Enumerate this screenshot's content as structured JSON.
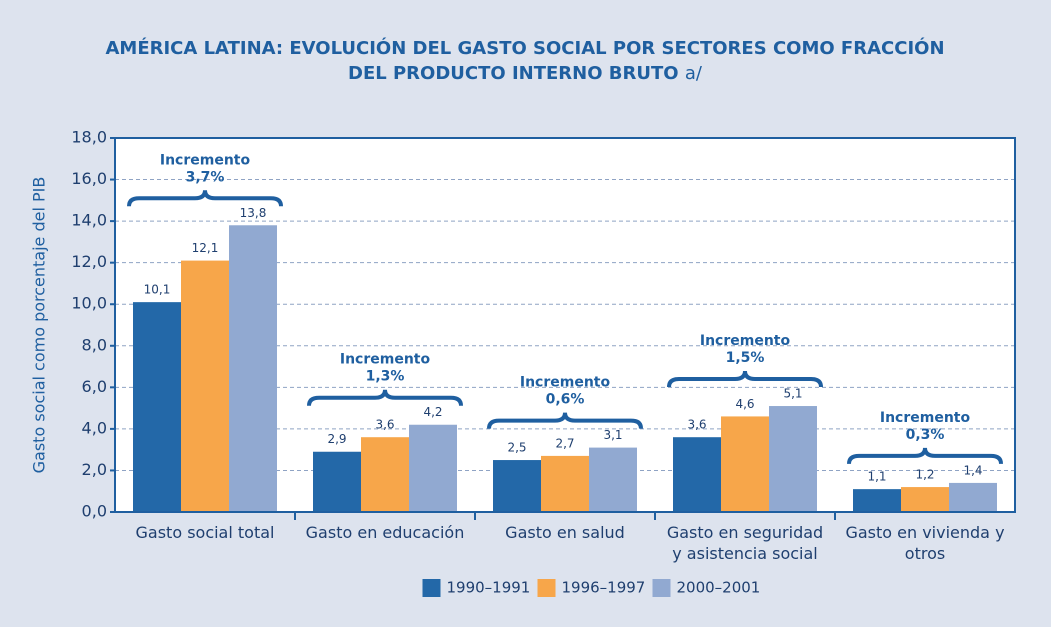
{
  "chart_data": {
    "type": "bar",
    "title": "AMÉRICA LATINA: EVOLUCIÓN DEL GASTO SOCIAL POR SECTORES COMO FRACCIÓN DEL PRODUCTO INTERNO BRUTO",
    "title_note": "a/",
    "y_label": "Gasto social como porcentaje del PIB",
    "categories": [
      "Gasto social total",
      "Gasto en educación",
      "Gasto en salud",
      "Gasto en seguridad y asistencia social",
      "Gasto en vivienda y otros"
    ],
    "series": [
      {
        "name": "1990–1991",
        "color": "#2368a8",
        "values": [
          10.1,
          2.9,
          2.5,
          3.6,
          1.1
        ],
        "value_labels": [
          "10,1",
          "2,9",
          "2,5",
          "3,6",
          "1,1"
        ]
      },
      {
        "name": "1996–1997",
        "color": "#f7a64a",
        "values": [
          12.1,
          3.6,
          2.7,
          4.6,
          1.2
        ],
        "value_labels": [
          "12,1",
          "3,6",
          "2,7",
          "4,6",
          "1,2"
        ]
      },
      {
        "name": "2000–2001",
        "color": "#91a9d1",
        "values": [
          13.8,
          4.2,
          3.1,
          5.1,
          1.4
        ],
        "value_labels": [
          "13,8",
          "4,2",
          "3,1",
          "5,1",
          "1,4"
        ]
      }
    ],
    "increment_label": "Incremento",
    "increments": [
      {
        "value": 3.7,
        "label": "3,7%"
      },
      {
        "value": 1.3,
        "label": "1,3%"
      },
      {
        "value": 0.6,
        "label": "0,6%"
      },
      {
        "value": 1.5,
        "label": "1,5%"
      },
      {
        "value": 0.3,
        "label": "0,3%"
      }
    ],
    "ylim": [
      0,
      18
    ],
    "yticks": [
      {
        "value": 0,
        "label": "0,0"
      },
      {
        "value": 2,
        "label": "2,0"
      },
      {
        "value": 4,
        "label": "4,0"
      },
      {
        "value": 6,
        "label": "6,0"
      },
      {
        "value": 8,
        "label": "8,0"
      },
      {
        "value": 10,
        "label": "10,0"
      },
      {
        "value": 12,
        "label": "12,0"
      },
      {
        "value": 14,
        "label": "14,0"
      },
      {
        "value": 16,
        "label": "16,0"
      },
      {
        "value": 18,
        "label": "18,0"
      }
    ],
    "grid": true,
    "legend": "bottom"
  }
}
